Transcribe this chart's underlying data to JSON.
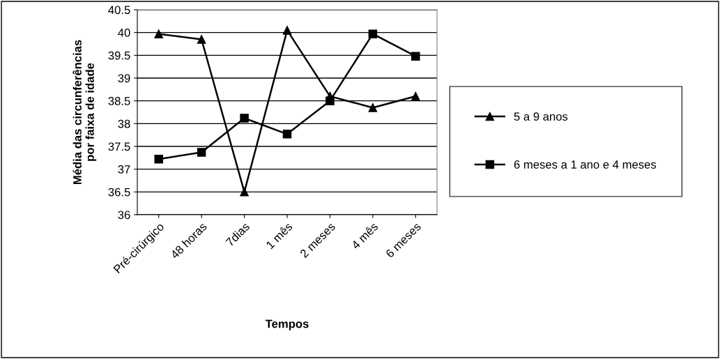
{
  "chart_data": {
    "type": "line",
    "xlabel": "Tempos",
    "ylabel": "Média das circunferências\npor faixa de idade",
    "categories": [
      "Pré-cirúrgico",
      "48 horas",
      "7dias",
      "1 mês",
      "2 meses",
      "4 mês",
      "6 meses"
    ],
    "series": [
      {
        "name": "5 a 9 anos",
        "color": "#000000",
        "marker": "triangle",
        "values": [
          39.97,
          39.85,
          36.5,
          40.05,
          38.6,
          38.35,
          38.6
        ]
      },
      {
        "name": "6 meses a 1 ano e 4 meses",
        "color": "#000000",
        "marker": "square",
        "values": [
          37.22,
          37.37,
          38.12,
          37.77,
          38.5,
          39.97,
          39.48
        ]
      }
    ],
    "ylim": [
      36,
      40.5
    ],
    "yticks": [
      36,
      36.5,
      37,
      37.5,
      38,
      38.5,
      39,
      39.5,
      40,
      40.5
    ],
    "grid": "y",
    "legend": "right",
    "line_style": "solid"
  }
}
